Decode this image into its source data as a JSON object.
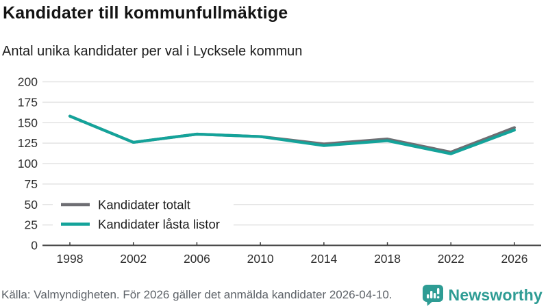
{
  "header": {
    "title": "Kandidater till kommunfullmäktige",
    "subtitle": "Antal unika kandidater per val i Lycksele kommun"
  },
  "chart_data": {
    "type": "line",
    "categories": [
      1998,
      2002,
      2006,
      2010,
      2014,
      2018,
      2022,
      2026
    ],
    "series": [
      {
        "name": "Kandidater totalt",
        "color": "#6e6e73",
        "values": [
          158,
          126,
          136,
          133,
          124,
          130,
          114,
          144
        ]
      },
      {
        "name": "Kandidater låsta listor",
        "color": "#14a39a",
        "values": [
          158,
          126,
          136,
          133,
          122,
          128,
          112,
          141
        ]
      }
    ],
    "title": "Kandidater till kommunfullmäktige",
    "subtitle": "Antal unika kandidater per val i Lycksele kommun",
    "xlabel": "",
    "ylabel": "",
    "ylim": [
      0,
      200
    ],
    "yticks": [
      0,
      25,
      50,
      75,
      100,
      125,
      150,
      175,
      200
    ],
    "grid": true,
    "legend_position": "inside-bottom-left"
  },
  "footer": {
    "source": "Källa: Valmyndigheten. För 2026 gäller det anmälda kandidater 2026-04-10.",
    "brand": "Newsworthy"
  },
  "colors": {
    "accent_teal": "#14a39a",
    "line_gray": "#6e6e73",
    "grid": "#e3e3e3",
    "axis": "#3a3a3a",
    "tick_label": "#2f2f2f",
    "legend_label": "#1d1d1d",
    "source_text": "#5d6268",
    "brand_teal": "#2e9c94"
  }
}
